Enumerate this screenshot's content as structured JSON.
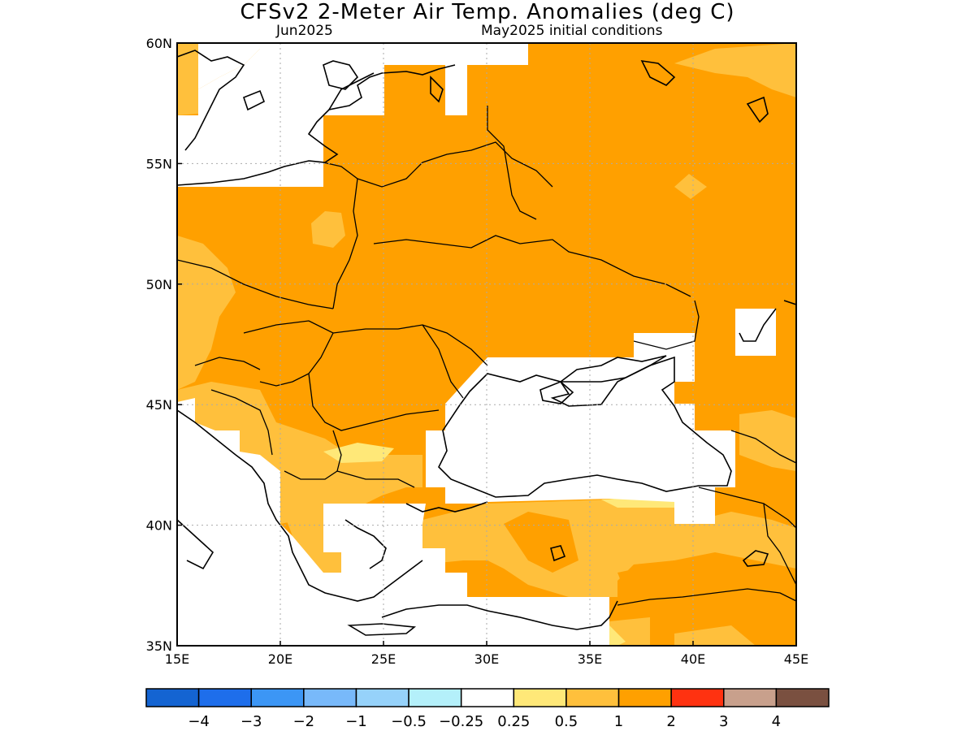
{
  "title": "CFSv2 2-Meter Air Temp. Anomalies (deg C)",
  "subtitle_left": "Jun2025",
  "subtitle_right": "May2025 initial conditions",
  "map": {
    "lon_range": [
      15,
      45
    ],
    "lat_range": [
      35,
      60
    ],
    "x_ticks": [
      "15E",
      "20E",
      "25E",
      "30E",
      "35E",
      "40E",
      "45E"
    ],
    "y_ticks": [
      "35N",
      "40N",
      "45N",
      "50N",
      "55N",
      "60N"
    ],
    "grid": true,
    "land_color_by_class": {
      "none": "#ffffff",
      "0.25-0.5": "#ffe878",
      "0.5-1": "#ffc03c",
      "1-2": "#ffa000"
    },
    "dominant_anomaly": "1-2",
    "legend_position": "bottom"
  },
  "colorbar": {
    "colors": [
      "#1464d2",
      "#1e6eeb",
      "#3c96f5",
      "#78b9fa",
      "#96d2fa",
      "#b4f0fa",
      "#ffffff",
      "#ffe878",
      "#ffc03c",
      "#ffa000",
      "#ff3210",
      "#c8a08c",
      "#7a5040"
    ],
    "labels": [
      "−4",
      "−3",
      "−2",
      "−1",
      "−0.5",
      "−0.25",
      "0.25",
      "0.5",
      "1",
      "2",
      "3",
      "4"
    ]
  }
}
